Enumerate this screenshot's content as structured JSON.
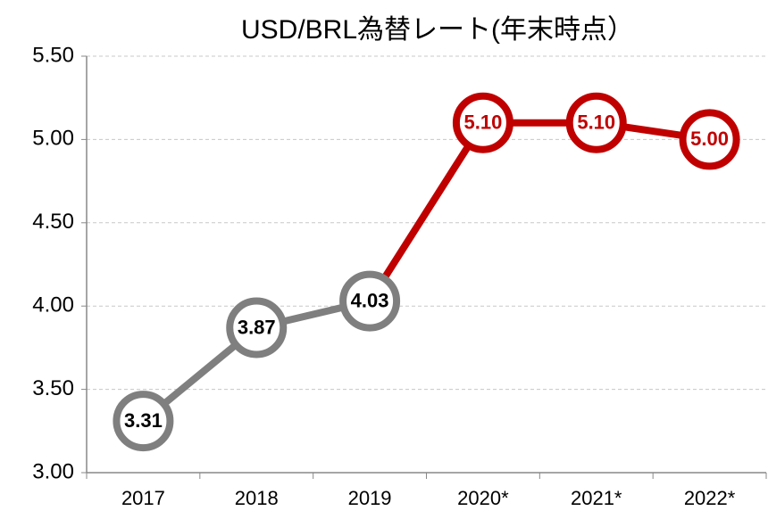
{
  "chart_data": {
    "type": "line",
    "title": "USD/BRL為替レート(年末時点）",
    "categories": [
      "2017",
      "2018",
      "2019",
      "2020*",
      "2021*",
      "2022*"
    ],
    "values": [
      3.31,
      3.87,
      4.03,
      5.1,
      5.1,
      5.0
    ],
    "value_labels": [
      "3.31",
      "3.87",
      "4.03",
      "5.10",
      "5.10",
      "5.00"
    ],
    "colors": [
      "#7f7f7f",
      "#7f7f7f",
      "#7f7f7f",
      "#c00000",
      "#c00000",
      "#c00000"
    ],
    "ylim": [
      3,
      5.5
    ],
    "yticks": [
      {
        "value": 3,
        "label": "3.00"
      },
      {
        "value": 3.5,
        "label": "3.50"
      },
      {
        "value": 4,
        "label": "4.00"
      },
      {
        "value": 4.5,
        "label": "4.50"
      },
      {
        "value": 5,
        "label": "5.00"
      },
      {
        "value": 5.5,
        "label": "5.50"
      }
    ],
    "grid": true
  }
}
